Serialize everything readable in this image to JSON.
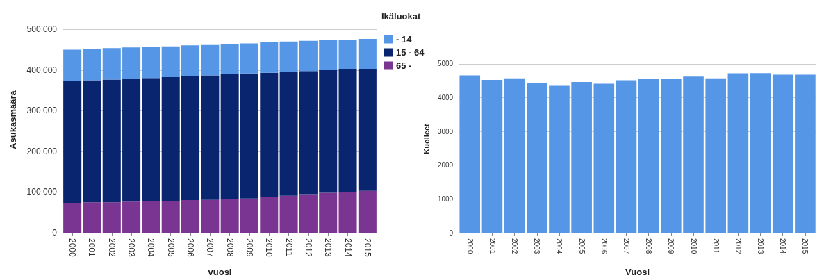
{
  "chart_data": [
    {
      "type": "bar",
      "stacked": true,
      "xlabel": "vuosi",
      "ylabel": "Asukasmäärä",
      "legend_title": "Ikäluokat",
      "legend": "right",
      "grid": "y",
      "categories": [
        "2000",
        "2001",
        "2002",
        "2003",
        "2004",
        "2005",
        "2006",
        "2007",
        "2008",
        "2009",
        "2010",
        "2011",
        "2012",
        "2013",
        "2014",
        "2015"
      ],
      "ylim": [
        0,
        555000
      ],
      "yticks": [
        {
          "value": 0,
          "label": "0"
        },
        {
          "value": 100000,
          "label": "100 000"
        },
        {
          "value": 200000,
          "label": "200 000"
        },
        {
          "value": 300000,
          "label": "300 000"
        },
        {
          "value": 400000,
          "label": "400 000"
        },
        {
          "value": 500000,
          "label": "500 000"
        }
      ],
      "series": [
        {
          "name": "65 -",
          "color": "#793591",
          "values": [
            73500,
            74600,
            74600,
            76300,
            78000,
            78500,
            80200,
            80700,
            81800,
            84100,
            86900,
            90800,
            94700,
            98000,
            100800,
            103000
          ]
        },
        {
          "name": "15 - 64",
          "color": "#0a2570",
          "values": [
            299000,
            300100,
            301800,
            302300,
            302300,
            304000,
            304500,
            306300,
            307400,
            307300,
            306200,
            304500,
            302900,
            301800,
            300600,
            300100
          ]
        },
        {
          "name": "- 14",
          "color": "#5596e6",
          "values": [
            77400,
            77400,
            77400,
            76900,
            76300,
            75700,
            75800,
            74600,
            74600,
            74100,
            74600,
            74600,
            74000,
            73500,
            73500,
            73500
          ]
        }
      ]
    },
    {
      "type": "bar",
      "xlabel": "Vuosi",
      "ylabel": "Kuolleet",
      "grid": "y",
      "categories": [
        "2000",
        "2001",
        "2002",
        "2003",
        "2004",
        "2005",
        "2006",
        "2007",
        "2008",
        "2009",
        "2010",
        "2011",
        "2012",
        "2013",
        "2014",
        "2015"
      ],
      "ylim": [
        0,
        5550
      ],
      "yticks": [
        0,
        1000,
        2000,
        3000,
        4000,
        5000
      ],
      "series": [
        {
          "color": "#5596e6",
          "values": [
            4656,
            4521,
            4566,
            4431,
            4349,
            4461,
            4409,
            4513,
            4543,
            4543,
            4618,
            4566,
            4716,
            4723,
            4678,
            4678
          ]
        }
      ]
    }
  ]
}
